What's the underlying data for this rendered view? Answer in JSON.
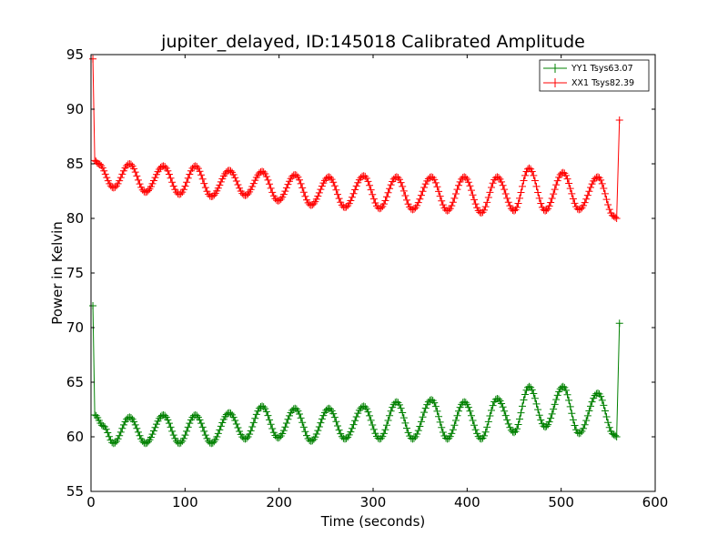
{
  "chart_data": {
    "type": "line",
    "title": "jupiter_delayed, ID:145018 Calibrated Amplitude",
    "xlabel": "Time (seconds)",
    "ylabel": "Power in Kelvin",
    "xlim": [
      0,
      600
    ],
    "ylim": [
      55,
      95
    ],
    "xticks": [
      "0",
      "100",
      "200",
      "300",
      "400",
      "500",
      "600"
    ],
    "yticks": [
      "55",
      "60",
      "65",
      "70",
      "75",
      "80",
      "85",
      "90",
      "95"
    ],
    "grid": false,
    "legend_position": "top-right",
    "series": [
      {
        "name": "YY1 Tsys63.07",
        "color": "#008000",
        "marker": "+",
        "spike_start": [
          2,
          72
        ],
        "spike_end": [
          562,
          70.4
        ],
        "x": [
          4,
          13,
          24,
          41,
          58,
          77,
          94,
          111,
          128,
          147,
          164,
          182,
          199,
          217,
          234,
          253,
          270,
          290,
          307,
          325,
          342,
          362,
          379,
          397,
          415,
          432,
          450,
          466,
          483,
          502,
          519,
          539,
          556,
          559
        ],
        "values": [
          62,
          61,
          59.4,
          61.8,
          59.4,
          62,
          59.4,
          62,
          59.4,
          62.2,
          59.8,
          62.8,
          59.9,
          62.6,
          59.6,
          62.6,
          59.8,
          62.8,
          59.8,
          63.2,
          59.8,
          63.4,
          59.8,
          63.2,
          59.8,
          63.5,
          60.4,
          64.6,
          60.9,
          64.6,
          60.3,
          64,
          60.2,
          60
        ]
      },
      {
        "name": "XX1 Tsys82.39",
        "color": "#ff0000",
        "marker": "+",
        "spike_start": [
          2,
          94.6
        ],
        "spike_end": [
          562,
          89
        ],
        "x": [
          4,
          8,
          24,
          41,
          58,
          77,
          94,
          111,
          128,
          147,
          164,
          182,
          199,
          217,
          234,
          253,
          270,
          290,
          307,
          325,
          342,
          362,
          379,
          397,
          415,
          432,
          450,
          466,
          483,
          502,
          519,
          539,
          556,
          559
        ],
        "values": [
          85.3,
          85,
          82.8,
          85,
          82.4,
          84.8,
          82.2,
          84.8,
          82,
          84.4,
          82.1,
          84.3,
          81.6,
          84,
          81.2,
          83.8,
          81,
          83.9,
          80.9,
          83.8,
          80.8,
          83.8,
          80.7,
          83.8,
          80.5,
          83.8,
          80.7,
          84.6,
          80.7,
          84.2,
          80.8,
          83.8,
          80.2,
          80
        ]
      }
    ]
  }
}
